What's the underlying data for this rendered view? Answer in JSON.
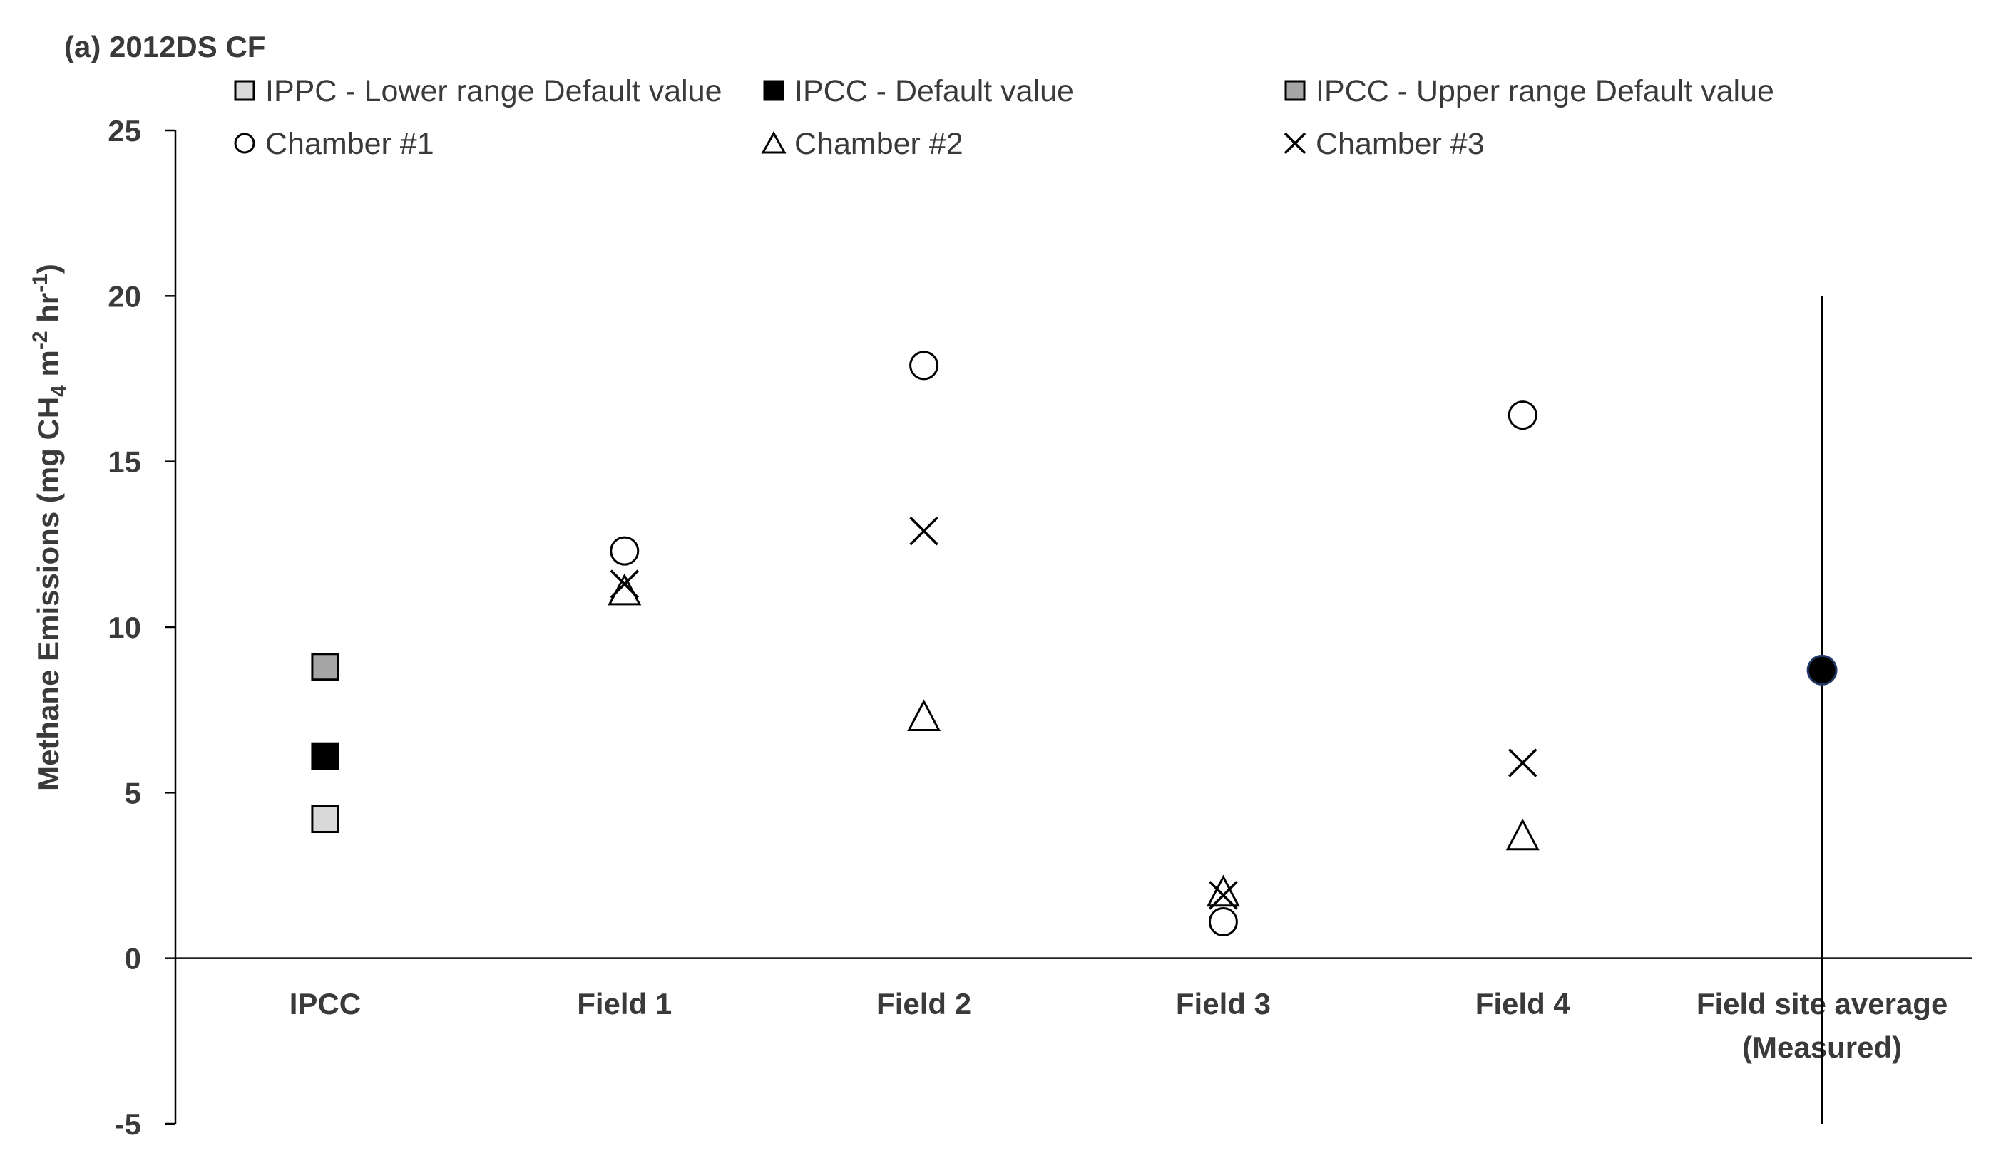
{
  "chart_data": {
    "type": "scatter",
    "title": "(a) 2012DS CF",
    "ylabel": "Methane Emissions (mg CH4 m-2 hr-1)",
    "ylabel_parts": {
      "pre": "Methane Emissions (mg CH",
      "sub": "4",
      "mid1": " m",
      "sup1": "-2",
      "mid2": " hr",
      "sup2": "-1",
      "post": ")"
    },
    "ylim": [
      -5,
      25
    ],
    "yticks": [
      -5,
      0,
      5,
      10,
      15,
      20,
      25
    ],
    "categories": [
      "IPCC",
      "Field 1",
      "Field 2",
      "Field 3",
      "Field 4",
      "Field site average\n(Measured)"
    ],
    "legend": {
      "placement": "top",
      "entries": [
        {
          "key": "ipcc_lower",
          "label": "IPPC - Lower range Default value",
          "marker": "square",
          "color": "#d9d9d9"
        },
        {
          "key": "ipcc_default",
          "label": "IPCC - Default value",
          "marker": "square",
          "color": "#000000"
        },
        {
          "key": "ipcc_upper",
          "label": "IPCC - Upper range Default value",
          "marker": "square",
          "color": "#a6a6a6"
        },
        {
          "key": "chamber1",
          "label": "Chamber #1",
          "marker": "circle",
          "color": "#ffffff"
        },
        {
          "key": "chamber2",
          "label": "Chamber #2",
          "marker": "triangle",
          "color": "#ffffff"
        },
        {
          "key": "chamber3",
          "label": "Chamber #3",
          "marker": "x",
          "color": "#000000"
        }
      ]
    },
    "series": [
      {
        "key": "ipcc_lower",
        "marker": "square",
        "color": "#d9d9d9",
        "points": [
          {
            "category": "IPCC",
            "y": 4.2
          }
        ]
      },
      {
        "key": "ipcc_default",
        "marker": "square",
        "color": "#000000",
        "points": [
          {
            "category": "IPCC",
            "y": 6.1
          }
        ]
      },
      {
        "key": "ipcc_upper",
        "marker": "square",
        "color": "#a6a6a6",
        "points": [
          {
            "category": "IPCC",
            "y": 8.8
          }
        ]
      },
      {
        "key": "chamber1",
        "marker": "circle",
        "points": [
          {
            "category": "Field 1",
            "y": 12.3
          },
          {
            "category": "Field 2",
            "y": 17.9
          },
          {
            "category": "Field 3",
            "y": 1.1
          },
          {
            "category": "Field 4",
            "y": 16.4
          }
        ]
      },
      {
        "key": "chamber2",
        "marker": "triangle",
        "points": [
          {
            "category": "Field 1",
            "y": 11.1
          },
          {
            "category": "Field 2",
            "y": 7.3
          },
          {
            "category": "Field 3",
            "y": 2.0
          },
          {
            "category": "Field 4",
            "y": 3.7
          }
        ]
      },
      {
        "key": "chamber3",
        "marker": "x",
        "points": [
          {
            "category": "Field 1",
            "y": 11.3
          },
          {
            "category": "Field 2",
            "y": 12.9
          },
          {
            "category": "Field 3",
            "y": 1.9
          },
          {
            "category": "Field 4",
            "y": 5.9
          }
        ]
      },
      {
        "key": "measured_average",
        "marker": "filled-circle",
        "color": "#000000",
        "points": [
          {
            "category": "Field site average\n(Measured)",
            "y": 8.7,
            "error_low": -5,
            "error_high": 20
          }
        ]
      }
    ],
    "grid": false
  }
}
